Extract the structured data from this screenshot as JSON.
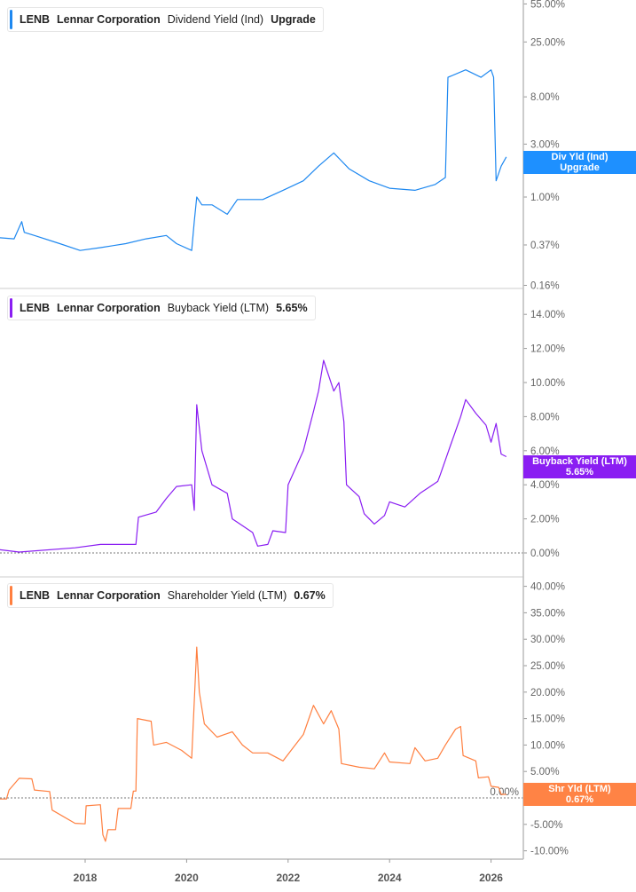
{
  "chart_data": [
    {
      "type": "line",
      "legend": {
        "ticker": "LENB",
        "company": "Lennar Corporation",
        "metric": "Dividend Yield (Ind)",
        "value": "Upgrade"
      },
      "badge": {
        "line1": "Div Yld (Ind)",
        "line2": "Upgrade"
      },
      "color": "#1e88f0",
      "yscale": "log",
      "yticks": [
        "55.00%",
        "25.00%",
        "8.00%",
        "3.00%",
        "1.00%",
        "0.37%",
        "0.16%"
      ],
      "ytick_values": [
        55,
        25,
        8,
        3,
        1,
        0.37,
        0.16
      ],
      "x": [
        2016.3,
        2016.6,
        2016.75,
        2016.8,
        2017.0,
        2017.5,
        2017.9,
        2018.3,
        2018.8,
        2019.2,
        2019.6,
        2019.8,
        2020.1,
        2020.15,
        2020.2,
        2020.3,
        2020.5,
        2020.8,
        2021.0,
        2021.5,
        2021.9,
        2022.3,
        2022.6,
        2022.9,
        2023.2,
        2023.6,
        2024.0,
        2024.5,
        2024.9,
        2025.1,
        2025.15,
        2025.5,
        2025.8,
        2026.0,
        2026.05,
        2026.1,
        2026.2,
        2026.3
      ],
      "values": [
        0.43,
        0.42,
        0.6,
        0.48,
        0.45,
        0.38,
        0.33,
        0.35,
        0.38,
        0.42,
        0.45,
        0.38,
        0.33,
        0.6,
        1.0,
        0.85,
        0.85,
        0.7,
        0.95,
        0.95,
        1.15,
        1.4,
        1.9,
        2.5,
        1.8,
        1.4,
        1.2,
        1.15,
        1.3,
        1.5,
        12,
        14,
        12,
        14,
        12,
        1.4,
        1.9,
        2.3
      ]
    },
    {
      "type": "line",
      "legend": {
        "ticker": "LENB",
        "company": "Lennar Corporation",
        "metric": "Buyback Yield (LTM)",
        "value": "5.65%"
      },
      "badge": {
        "line1": "Buyback Yield (LTM)",
        "line2": "5.65%"
      },
      "color": "#8a1ef2",
      "yscale": "linear",
      "ylim": [
        0,
        14
      ],
      "yticks": [
        "14.00%",
        "12.00%",
        "10.00%",
        "8.00%",
        "6.00%",
        "4.00%",
        "2.00%",
        "0.00%"
      ],
      "ytick_values": [
        14,
        12,
        10,
        8,
        6,
        4,
        2,
        0
      ],
      "x": [
        2016.3,
        2016.7,
        2017.8,
        2018.3,
        2019.0,
        2019.05,
        2019.4,
        2019.6,
        2019.8,
        2020.1,
        2020.15,
        2020.2,
        2020.3,
        2020.5,
        2020.8,
        2020.9,
        2021.1,
        2021.3,
        2021.4,
        2021.6,
        2021.7,
        2021.95,
        2022.0,
        2022.3,
        2022.5,
        2022.6,
        2022.7,
        2022.9,
        2023.0,
        2023.1,
        2023.15,
        2023.4,
        2023.5,
        2023.7,
        2023.9,
        2024.0,
        2024.3,
        2024.6,
        2024.8,
        2024.95,
        2025.0,
        2025.2,
        2025.4,
        2025.5,
        2025.7,
        2025.9,
        2026.0,
        2026.1,
        2026.2,
        2026.3
      ],
      "values": [
        0.2,
        0.05,
        0.3,
        0.5,
        0.5,
        2.1,
        2.4,
        3.2,
        3.9,
        4.0,
        2.5,
        8.7,
        6.0,
        4.0,
        3.5,
        2.0,
        1.6,
        1.2,
        0.4,
        0.5,
        1.3,
        1.2,
        4.0,
        6.0,
        8.3,
        9.5,
        11.3,
        9.5,
        10.0,
        7.7,
        4.0,
        3.3,
        2.3,
        1.7,
        2.2,
        3.0,
        2.7,
        3.5,
        3.9,
        4.2,
        4.6,
        6.3,
        8.0,
        9.0,
        8.2,
        7.5,
        6.5,
        7.6,
        5.8,
        5.65
      ]
    },
    {
      "type": "line",
      "legend": {
        "ticker": "LENB",
        "company": "Lennar Corporation",
        "metric": "Shareholder Yield (LTM)",
        "value": "0.67%"
      },
      "badge": {
        "line1": "Shr Yld (LTM)",
        "line2": "0.67%"
      },
      "color": "#ff7f3f",
      "yscale": "linear",
      "ylim": [
        -10,
        40
      ],
      "yticks": [
        "40.00%",
        "35.00%",
        "30.00%",
        "25.00%",
        "20.00%",
        "15.00%",
        "10.00%",
        "5.00%",
        "0.00%",
        "-5.00%",
        "-10.00%"
      ],
      "ytick_values": [
        40,
        35,
        30,
        25,
        20,
        15,
        10,
        5,
        0,
        -5,
        -10
      ],
      "x": [
        2016.3,
        2016.45,
        2016.5,
        2016.7,
        2016.95,
        2017.0,
        2017.3,
        2017.35,
        2017.8,
        2018.0,
        2018.02,
        2018.3,
        2018.35,
        2018.4,
        2018.45,
        2018.6,
        2018.65,
        2018.9,
        2018.95,
        2019.0,
        2019.03,
        2019.3,
        2019.35,
        2019.6,
        2019.9,
        2020.1,
        2020.2,
        2020.25,
        2020.35,
        2020.6,
        2020.9,
        2021.1,
        2021.3,
        2021.6,
        2021.9,
        2022.1,
        2022.3,
        2022.5,
        2022.7,
        2022.85,
        2023.0,
        2023.05,
        2023.4,
        2023.7,
        2023.9,
        2024.0,
        2024.4,
        2024.5,
        2024.7,
        2024.95,
        2025.1,
        2025.3,
        2025.4,
        2025.45,
        2025.7,
        2025.75,
        2025.95,
        2026.0,
        2026.15,
        2026.2,
        2026.3
      ],
      "values": [
        -0.2,
        -0.2,
        1.5,
        3.7,
        3.6,
        1.5,
        1.2,
        -2.3,
        -4.8,
        -4.9,
        -1.5,
        -1.3,
        -7,
        -8.2,
        -6,
        -6,
        -2,
        -2,
        1.3,
        1.3,
        15,
        14.5,
        10,
        10.5,
        9,
        7.5,
        28.5,
        20,
        14,
        11.5,
        12.5,
        10,
        8.5,
        8.5,
        7,
        9.5,
        12,
        17.5,
        14,
        16.5,
        13,
        6.5,
        5.8,
        5.5,
        8.5,
        6.8,
        6.5,
        9.5,
        7,
        7.5,
        10,
        13,
        13.5,
        8,
        7,
        3.8,
        4,
        2.2,
        2,
        0.67,
        0.67
      ]
    }
  ],
  "x_axis": {
    "ticks": [
      "2018",
      "2020",
      "2022",
      "2024",
      "2026"
    ],
    "tick_values": [
      2018,
      2020,
      2022,
      2024,
      2026
    ]
  }
}
